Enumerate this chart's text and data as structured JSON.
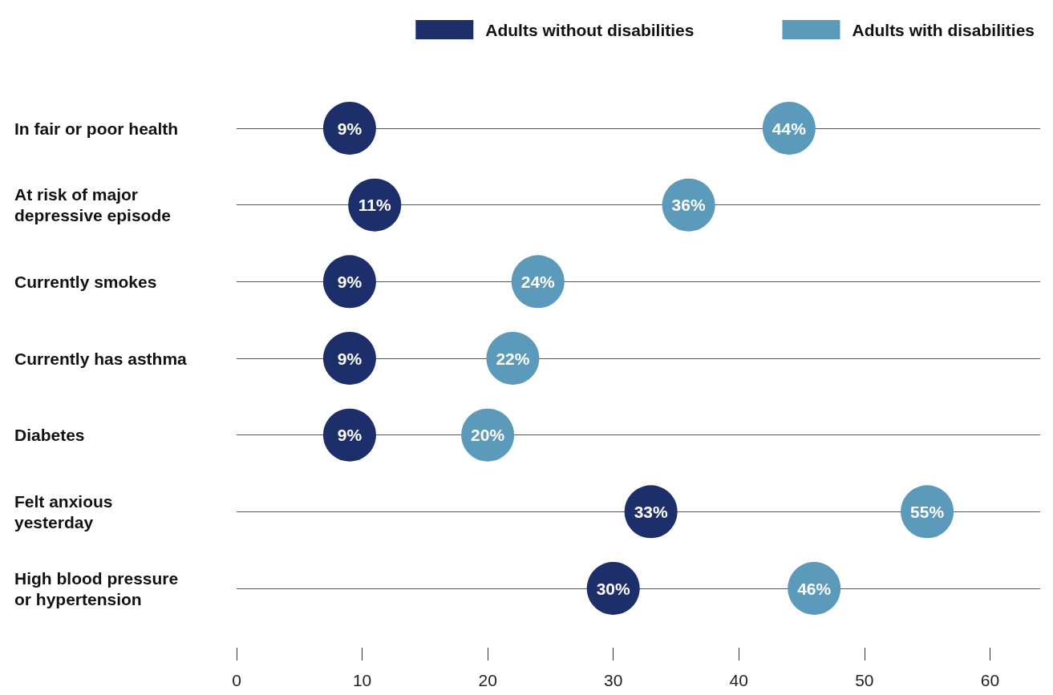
{
  "chart_data": {
    "type": "scatter",
    "orientation": "horizontal",
    "categories": [
      "In fair or poor health",
      "At risk of major\ndepressive episode",
      "Currently smokes",
      "Currently has asthma",
      "Diabetes",
      "Felt anxious\nyesterday",
      "High blood pressure\nor hypertension"
    ],
    "series": [
      {
        "name": "Adults without disabilities",
        "color": "#1d2f6b",
        "values": [
          9,
          11,
          9,
          9,
          9,
          33,
          30
        ],
        "value_labels": [
          "9%",
          "11%",
          "9%",
          "9%",
          "9%",
          "33%",
          "30%"
        ]
      },
      {
        "name": "Adults with disabilities",
        "color": "#5b9aba",
        "values": [
          44,
          36,
          24,
          22,
          20,
          55,
          46
        ],
        "value_labels": [
          "44%",
          "36%",
          "24%",
          "22%",
          "20%",
          "55%",
          "46%"
        ]
      }
    ],
    "xlim": [
      0,
      64
    ],
    "xticks": [
      0,
      10,
      20,
      30,
      40,
      50,
      60
    ],
    "grid": "y",
    "legend": "top right",
    "marker": "circle"
  }
}
